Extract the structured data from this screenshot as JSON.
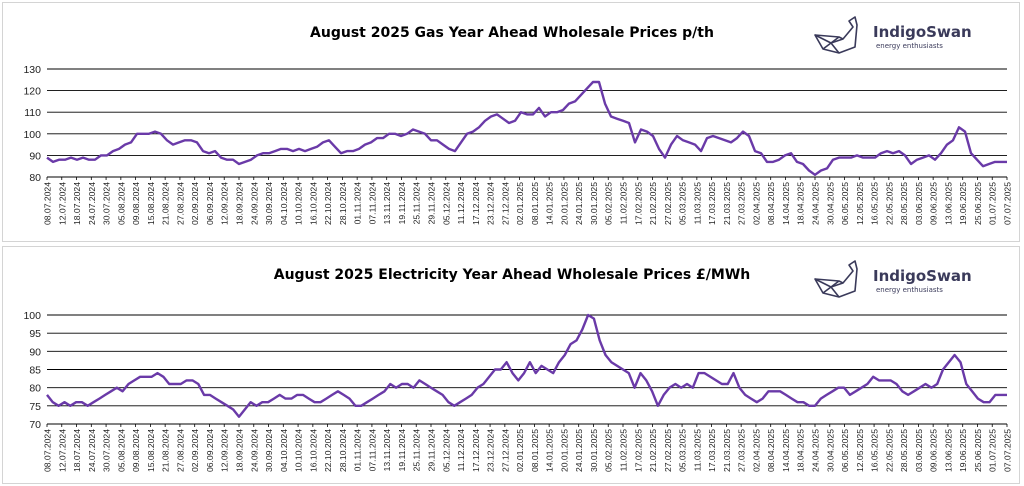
{
  "brand": {
    "name": "IndigoSwan",
    "tagline": "energy enthusiasts",
    "accent": "#6a3aa8",
    "logo_ink": "#3a3a5a"
  },
  "chart_data": [
    {
      "type": "line",
      "title": "August 2025 Gas Year Ahead Wholesale Prices p/th",
      "xlabel": "",
      "ylabel": "",
      "ylim": [
        80,
        130
      ],
      "yticks": [
        80,
        90,
        100,
        110,
        120,
        130
      ],
      "grid": true,
      "legend": "none",
      "color": "#6a3aa8",
      "x_tick_labels": [
        "08.07.2024",
        "12.07.2024",
        "18.07.2024",
        "24.07.2024",
        "30.07.2024",
        "05.08.2024",
        "09.08.2024",
        "15.08.2024",
        "21.08.2024",
        "27.08.2024",
        "02.09.2024",
        "06.09.2024",
        "12.09.2024",
        "18.09.2024",
        "24.09.2024",
        "30.09.2024",
        "04.10.2024",
        "10.10.2024",
        "16.10.2024",
        "22.10.2024",
        "28.10.2024",
        "01.11.2024",
        "07.11.2024",
        "13.11.2024",
        "19.11.2024",
        "25.11.2024",
        "29.11.2024",
        "05.12.2024",
        "11.12.2024",
        "17.12.2024",
        "23.12.2024",
        "27.12.2024",
        "02.01.2025",
        "08.01.2025",
        "14.01.2025",
        "20.01.2025",
        "24.01.2025",
        "30.01.2025",
        "05.02.2025",
        "11.02.2025",
        "17.02.2025",
        "21.02.2025",
        "27.02.2025",
        "05.03.2025",
        "11.03.2025",
        "17.03.2025",
        "21.03.2025",
        "27.03.2025",
        "02.04.2025",
        "08.04.2025",
        "14.04.2025",
        "18.04.2025",
        "24.04.2025",
        "30.04.2025",
        "06.05.2025",
        "12.05.2025",
        "16.05.2025",
        "22.05.2025",
        "28.05.2025",
        "03.06.2025",
        "09.06.2025",
        "13.06.2025",
        "19.06.2025",
        "25.06.2025",
        "01.07.2025",
        "07.07.2025"
      ],
      "series": [
        {
          "values": [
            89,
            87,
            88,
            88,
            89,
            88,
            89,
            88,
            88,
            90,
            90,
            92,
            93,
            95,
            96,
            100,
            100,
            100,
            101,
            100,
            97,
            95,
            96,
            97,
            97,
            96,
            92,
            91,
            92,
            89,
            88,
            88,
            86,
            87,
            88,
            90,
            91,
            91,
            92,
            93,
            93,
            92,
            93,
            92,
            93,
            94,
            96,
            97,
            94,
            91,
            92,
            92,
            93,
            95,
            96,
            98,
            98,
            100,
            100,
            99,
            100,
            102,
            101,
            100,
            97,
            97,
            95,
            93,
            92,
            96,
            100,
            101,
            103,
            106,
            108,
            109,
            107,
            105,
            106,
            110,
            109,
            109,
            112,
            108,
            110,
            110,
            111,
            114,
            115,
            118,
            121,
            124,
            124,
            114,
            108,
            107,
            106,
            105,
            96,
            102,
            101,
            99,
            93,
            89,
            95,
            99,
            97,
            96,
            95,
            92,
            98,
            99,
            98,
            97,
            96,
            98,
            101,
            99,
            92,
            91,
            87,
            87,
            88,
            90,
            91,
            87,
            86,
            83,
            81,
            83,
            84,
            88,
            89,
            89,
            89,
            90,
            89,
            89,
            89,
            91,
            92,
            91,
            92,
            90,
            86,
            88,
            89,
            90,
            88,
            91,
            95,
            97,
            103,
            101,
            91,
            88,
            85,
            86,
            87,
            87,
            87
          ]
        }
      ]
    },
    {
      "type": "line",
      "title": "August 2025 Electricity Year Ahead Wholesale Prices £/MWh",
      "xlabel": "",
      "ylabel": "",
      "ylim": [
        70,
        100
      ],
      "yticks": [
        70,
        75,
        80,
        85,
        90,
        95,
        100
      ],
      "grid": true,
      "legend": "none",
      "color": "#6a3aa8",
      "x_tick_labels": [
        "08.07.2024",
        "12.07.2024",
        "18.07.2024",
        "24.07.2024",
        "30.07.2024",
        "05.08.2024",
        "09.08.2024",
        "15.08.2024",
        "21.08.2024",
        "27.08.2024",
        "02.09.2024",
        "06.09.2024",
        "12.09.2024",
        "18.09.2024",
        "24.09.2024",
        "30.09.2024",
        "04.10.2024",
        "10.10.2024",
        "16.10.2024",
        "22.10.2024",
        "28.10.2024",
        "01.11.2024",
        "07.11.2024",
        "13.11.2024",
        "19.11.2024",
        "25.11.2024",
        "29.11.2024",
        "05.12.2024",
        "11.12.2024",
        "17.12.2024",
        "23.12.2024",
        "27.12.2024",
        "02.01.2025",
        "08.01.2025",
        "14.01.2025",
        "20.01.2025",
        "24.01.2025",
        "30.01.2025",
        "05.02.2025",
        "11.02.2025",
        "17.02.2025",
        "21.02.2025",
        "27.02.2025",
        "05.03.2025",
        "11.03.2025",
        "17.03.2025",
        "21.03.2025",
        "27.03.2025",
        "02.04.2025",
        "08.04.2025",
        "14.04.2025",
        "18.04.2025",
        "24.04.2025",
        "30.04.2025",
        "06.05.2025",
        "12.05.2025",
        "16.05.2025",
        "22.05.2025",
        "28.05.2025",
        "03.06.2025",
        "09.06.2025",
        "13.06.2025",
        "19.06.2025",
        "25.06.2025",
        "01.07.2025",
        "07.07.2025"
      ],
      "series": [
        {
          "values": [
            78,
            76,
            75,
            76,
            75,
            76,
            76,
            75,
            76,
            77,
            78,
            79,
            80,
            79,
            81,
            82,
            83,
            83,
            83,
            84,
            83,
            81,
            81,
            81,
            82,
            82,
            81,
            78,
            78,
            77,
            76,
            75,
            74,
            72,
            74,
            76,
            75,
            76,
            76,
            77,
            78,
            77,
            77,
            78,
            78,
            77,
            76,
            76,
            77,
            78,
            79,
            78,
            77,
            75,
            75,
            76,
            77,
            78,
            79,
            81,
            80,
            81,
            81,
            80,
            82,
            81,
            80,
            79,
            78,
            76,
            75,
            76,
            77,
            78,
            80,
            81,
            83,
            85,
            85,
            87,
            84,
            82,
            84,
            87,
            84,
            86,
            85,
            84,
            87,
            89,
            92,
            93,
            96,
            100,
            99,
            93,
            89,
            87,
            86,
            85,
            84,
            80,
            84,
            82,
            79,
            75,
            78,
            80,
            81,
            80,
            81,
            80,
            84,
            84,
            83,
            82,
            81,
            81,
            84,
            80,
            78,
            77,
            76,
            77,
            79,
            79,
            79,
            78,
            77,
            76,
            76,
            75,
            75,
            77,
            78,
            79,
            80,
            80,
            78,
            79,
            80,
            81,
            83,
            82,
            82,
            82,
            81,
            79,
            78,
            79,
            80,
            81,
            80,
            81,
            85,
            87,
            89,
            87,
            81,
            79,
            77,
            76,
            76,
            78,
            78,
            78
          ]
        }
      ]
    }
  ]
}
